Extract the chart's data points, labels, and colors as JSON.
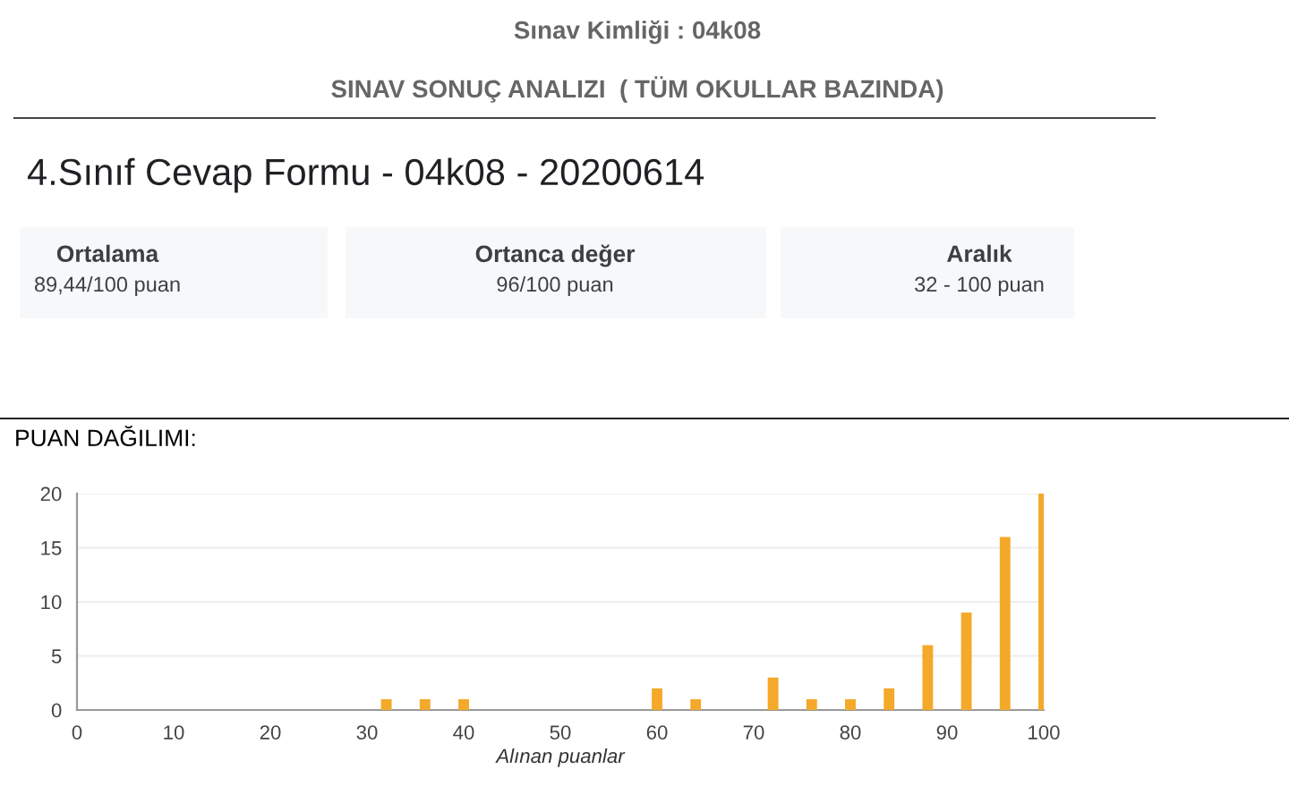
{
  "chart_data": {
    "type": "bar",
    "title": "Sınav Kimliği : 04k08",
    "subtitle": "SINAV SONUÇ ANALIZI  ( TÜM OKULLAR BAZINDA)",
    "annotations": [
      "4.Sınıf Cevap Formu - 04k08 - 20200614",
      "Ortalama",
      "89,44/100 puan",
      "Ortanca değer",
      "96/100 puan",
      "Aralık",
      "32 - 100 puan",
      "PUAN DAĞILIMI:"
    ],
    "xlabel": "Alınan puanlar",
    "x": [
      32,
      36,
      40,
      60,
      64,
      72,
      76,
      80,
      84,
      88,
      92,
      96,
      100
    ],
    "values": [
      1,
      1,
      1,
      2,
      1,
      3,
      1,
      1,
      2,
      6,
      9,
      16,
      20
    ],
    "color": "#f4a92a",
    "xlim": [
      0,
      100
    ],
    "xticks": [
      0,
      10,
      20,
      30,
      40,
      50,
      60,
      70,
      80,
      90,
      100
    ],
    "ylim": [
      0,
      20
    ],
    "yticks": [
      0,
      5,
      10,
      15,
      20
    ],
    "grid": "y",
    "legend": false
  }
}
